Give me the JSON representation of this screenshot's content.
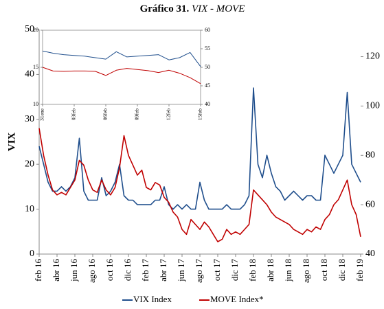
{
  "chart_data": [
    {
      "type": "line",
      "title": "Gráfico 31.",
      "subtitle": "VIX - MOVE",
      "ylabel": "VIX",
      "legend": "bottom",
      "categories": [
        "feb 16",
        null,
        null,
        null,
        "abr 16",
        null,
        null,
        null,
        "jun 16",
        null,
        null,
        null,
        "ago 16",
        null,
        null,
        null,
        "oct 16",
        null,
        null,
        null,
        "dic 16",
        null,
        null,
        null,
        "feb 17",
        null,
        null,
        null,
        "abr 17",
        null,
        null,
        null,
        "jun 17",
        null,
        null,
        null,
        "ago 17",
        null,
        null,
        null,
        "oct 17",
        null,
        null,
        null,
        "dic 17",
        null,
        null,
        null,
        "feb 18",
        null,
        null,
        null,
        "abr 18",
        null,
        null,
        null,
        "jun 18",
        null,
        null,
        null,
        "ago 18",
        null,
        null,
        null,
        "oct 18",
        null,
        null,
        null,
        "dic 18",
        null,
        null,
        null,
        "feb 19"
      ],
      "series": [
        {
          "name": "VIX Index",
          "color": "#1f4e8c",
          "values": [
            24,
            20,
            16,
            14,
            14,
            15,
            14,
            15,
            17,
            25.8,
            14,
            12,
            12,
            12,
            17,
            13,
            14,
            16,
            20,
            13,
            12,
            12,
            11,
            11,
            11,
            11,
            12,
            12,
            15,
            11,
            10,
            11,
            10,
            11,
            10,
            10,
            16,
            12,
            10,
            10,
            10,
            10,
            11,
            10,
            10,
            10,
            11,
            13,
            37,
            20,
            17,
            22,
            18,
            15,
            14,
            12,
            13,
            14,
            13,
            12,
            13,
            13,
            12,
            12,
            22,
            20,
            18,
            20,
            22,
            36,
            20,
            18,
            16
          ]
        },
        {
          "name": "MOVE Index*",
          "color": "#c00000",
          "axis": "y2",
          "values": [
            91,
            80,
            72,
            66,
            64,
            65,
            64,
            67,
            70,
            78,
            76,
            70,
            66,
            65,
            70,
            66,
            64,
            67,
            75,
            88,
            80,
            76,
            72,
            74,
            67,
            66,
            69,
            68,
            63,
            61,
            57,
            55,
            50,
            48,
            54,
            52,
            50,
            53,
            51,
            48,
            45,
            46,
            50,
            48,
            49,
            48,
            50,
            52,
            66,
            64,
            62,
            60,
            57,
            55,
            54,
            53,
            52,
            50,
            49,
            48,
            50,
            49,
            51,
            50,
            54,
            56,
            60,
            62,
            66,
            70,
            60,
            56,
            47
          ]
        }
      ],
      "ylim": [
        0,
        50
      ],
      "yticks": [
        0,
        10,
        20,
        30,
        40,
        50
      ],
      "y2lim": [
        40,
        131
      ],
      "y2ticks": [
        40,
        60,
        80,
        100,
        120
      ],
      "grid": false
    },
    {
      "type": "line",
      "categories": [
        "31ene",
        null,
        null,
        "03feb",
        null,
        null,
        "06feb",
        null,
        null,
        "09feb",
        null,
        null,
        "12feb",
        null,
        null,
        "15feb"
      ],
      "series": [
        {
          "name": "VIX Index",
          "color": "#1f4e8c",
          "values": [
            17.2,
            16.9,
            16.7,
            16.6,
            16.5,
            16.3,
            16.1,
            17.1,
            16.4,
            16.5,
            16.6,
            16.7,
            16.0,
            16.3,
            17.0,
            15.1
          ]
        },
        {
          "name": "MOVE Index*",
          "color": "#c00000",
          "axis": "y2",
          "values": [
            50,
            49,
            48.9,
            49,
            49,
            48.9,
            47.8,
            49.2,
            49.7,
            49.4,
            49.1,
            48.6,
            49.2,
            48.4,
            47.2,
            45.6
          ]
        }
      ],
      "ylim": [
        10,
        20
      ],
      "yticks": [
        10,
        15,
        20
      ],
      "y2lim": [
        40,
        60
      ],
      "y2ticks": [
        40,
        45,
        50,
        55,
        60
      ],
      "grid": false
    }
  ]
}
